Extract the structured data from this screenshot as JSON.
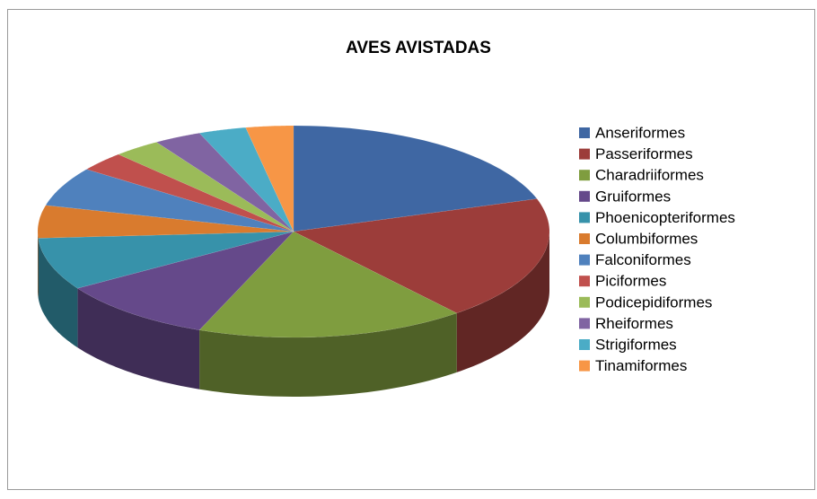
{
  "chart_data": {
    "type": "pie3d",
    "title": "AVES AVISTADAS",
    "categories": [
      "Anseriformes",
      "Passeriformes",
      "Charadriiformes",
      "Gruiformes",
      "Phoenicopteriformes",
      "Columbiformes",
      "Falconiformes",
      "Piciformes",
      "Podicepidiformes",
      "Rheiformes",
      "Strigiformes",
      "Tinamiformes"
    ],
    "values": [
      20,
      19,
      17,
      10,
      8,
      5,
      6,
      3,
      3,
      3,
      3,
      3
    ],
    "colors": [
      "#3f67a3",
      "#9c3d3a",
      "#7f9d3f",
      "#65498a",
      "#3792aa",
      "#d97b2e",
      "#4f81bd",
      "#c0504d",
      "#9bbb59",
      "#8064a2",
      "#4bacc6",
      "#f79646"
    ],
    "legend": "right"
  }
}
